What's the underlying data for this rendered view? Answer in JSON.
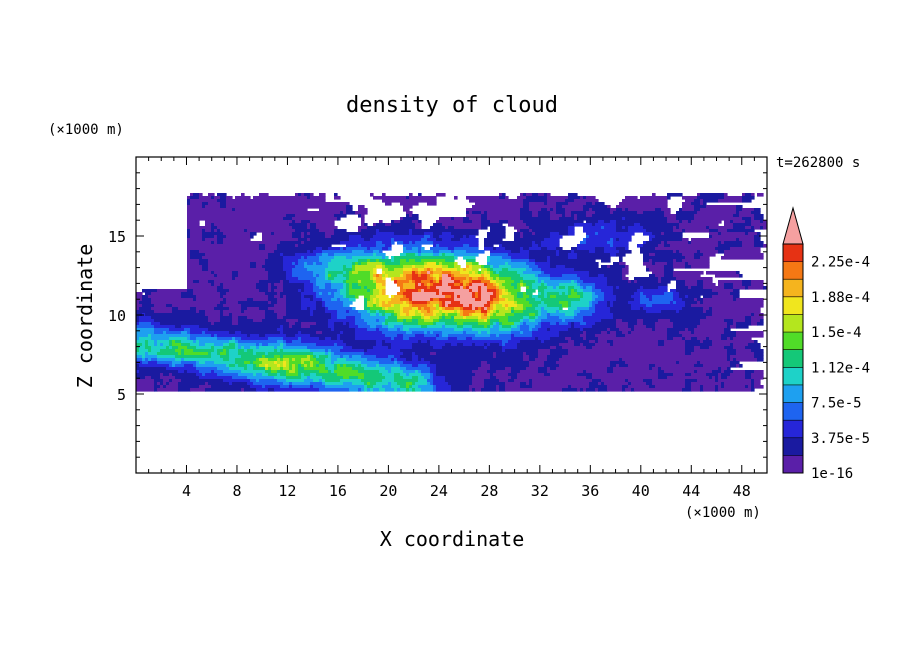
{
  "chart_data": {
    "type": "heatmap",
    "title": "density of cloud",
    "xlabel": "X coordinate",
    "ylabel": "Z coordinate",
    "x_unit": "(×1000 m)",
    "y_unit": "(×1000 m)",
    "time_label": "t=262800 s",
    "xlim": [
      0,
      50
    ],
    "ylim": [
      0,
      20
    ],
    "xticks": [
      4,
      8,
      12,
      16,
      20,
      24,
      28,
      32,
      36,
      40,
      44,
      48
    ],
    "yticks": [
      5,
      10,
      15
    ],
    "colorbar": {
      "levels": [
        1e-16,
        1.875e-05,
        3.75e-05,
        5.625e-05,
        7.5e-05,
        9.375e-05,
        0.0001125,
        0.00013125,
        0.00015,
        0.00016875,
        0.0001875,
        0.00020625,
        0.000225,
        0.00024375
      ],
      "labels": [
        "1e-16",
        "3.75e-5",
        "7.5e-5",
        "1.12e-4",
        "1.5e-4",
        "1.88e-4",
        "2.25e-4"
      ],
      "colors": [
        "#5a1fa8",
        "#1a1aa0",
        "#2626d8",
        "#1e64f0",
        "#1ea0f0",
        "#1ed2c8",
        "#14c878",
        "#50dc28",
        "#b4e61e",
        "#f0e61e",
        "#f5b41e",
        "#f57814",
        "#e63214",
        "#f5a0a0"
      ],
      "overflow_color": "#f5a0a0"
    },
    "regions": [
      {
        "level": 0,
        "desc": "cloud envelope",
        "band_z": [
          5.2,
          10.5
        ],
        "x": [
          0,
          50
        ]
      },
      {
        "level": 0,
        "desc": "upper cloud layer",
        "band_z": [
          10.0,
          17.8
        ],
        "x": [
          4,
          50
        ]
      },
      {
        "level": 5,
        "desc": "lower inflow band",
        "x_range": [
          0,
          18
        ],
        "z_range": [
          6.5,
          9.5
        ]
      },
      {
        "level": 12,
        "desc": "core",
        "center": [
          23,
          11.5
        ],
        "extent_x": [
          17,
          31
        ],
        "extent_z": [
          8.5,
          13.5
        ]
      },
      {
        "level": 13,
        "desc": "core maximum",
        "center": [
          22,
          11.5
        ]
      }
    ]
  }
}
